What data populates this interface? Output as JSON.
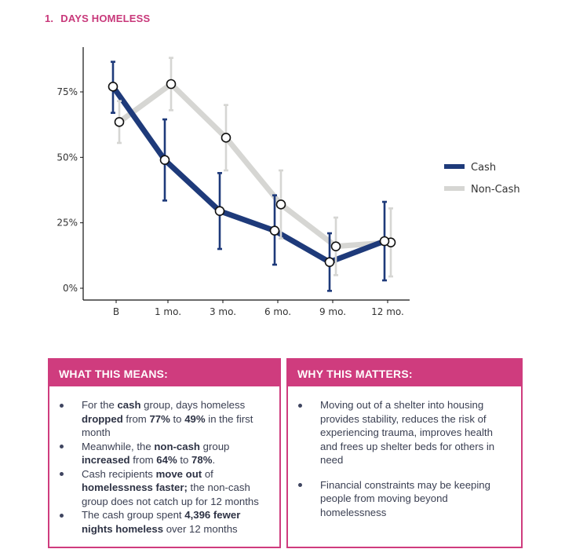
{
  "section": {
    "number": "1.",
    "title": "DAYS HOMELESS"
  },
  "chart_data": {
    "type": "line",
    "title": "Days Homeless",
    "categories": [
      "B",
      "1 mo.",
      "3 mo.",
      "6 mo.",
      "9 mo.",
      "12 mo."
    ],
    "y_tick_labels": [
      "0%",
      "25%",
      "50%",
      "75%"
    ],
    "y_ticks": [
      0,
      25,
      50,
      75
    ],
    "ylim": [
      0,
      87
    ],
    "legend_position": "right",
    "series": [
      {
        "name": "Cash",
        "color": "#1e3a7a",
        "values": [
          77,
          49,
          29.5,
          22,
          10,
          18
        ],
        "error_low": [
          67,
          33.5,
          15,
          9,
          -1,
          3
        ],
        "error_high": [
          86.5,
          64.5,
          44,
          35.5,
          21,
          33
        ]
      },
      {
        "name": "Non-Cash",
        "color": "#d6d6d3",
        "values": [
          63.5,
          78,
          57.5,
          32,
          16,
          17.5
        ],
        "error_low": [
          55.5,
          68,
          45,
          19,
          5,
          4.5
        ],
        "error_high": [
          71.5,
          88,
          70,
          45,
          27,
          30.5
        ]
      }
    ]
  },
  "left_box": {
    "header": "WHAT THIS MEANS:",
    "items": [
      [
        {
          "t": "For the "
        },
        {
          "t": "cash",
          "b": true
        },
        {
          "t": " group, days homeless "
        },
        {
          "t": "dropped",
          "b": true
        },
        {
          "t": " from "
        },
        {
          "t": "77%",
          "b": true
        },
        {
          "t": " to "
        },
        {
          "t": "49%",
          "b": true
        },
        {
          "t": " in the first month"
        }
      ],
      [
        {
          "t": "Meanwhile, the "
        },
        {
          "t": "non-cash",
          "b": true
        },
        {
          "t": " group "
        },
        {
          "t": "increased",
          "b": true
        },
        {
          "t": " from "
        },
        {
          "t": "64%",
          "b": true
        },
        {
          "t": " to "
        },
        {
          "t": "78%",
          "b": true
        },
        {
          "t": "."
        }
      ],
      [
        {
          "t": "Cash recipients "
        },
        {
          "t": "move out",
          "b": true
        },
        {
          "t": " of "
        },
        {
          "t": "homelessness faster;",
          "b": true
        },
        {
          "t": " the non-cash group does not catch up for 12 months"
        }
      ],
      [
        {
          "t": "The cash group spent "
        },
        {
          "t": "4,396 fewer nights homeless",
          "b": true
        },
        {
          "t": " over 12 months"
        }
      ]
    ]
  },
  "right_box": {
    "header": "WHY THIS MATTERS:",
    "items": [
      [
        {
          "t": "Moving out of a shelter into housing provides stability, reduces the risk of experiencing trauma, improves health and frees up shelter beds for others in need"
        }
      ],
      [
        {
          "t": "Financial constraints may be keeping people from moving beyond homelessness"
        }
      ]
    ]
  }
}
